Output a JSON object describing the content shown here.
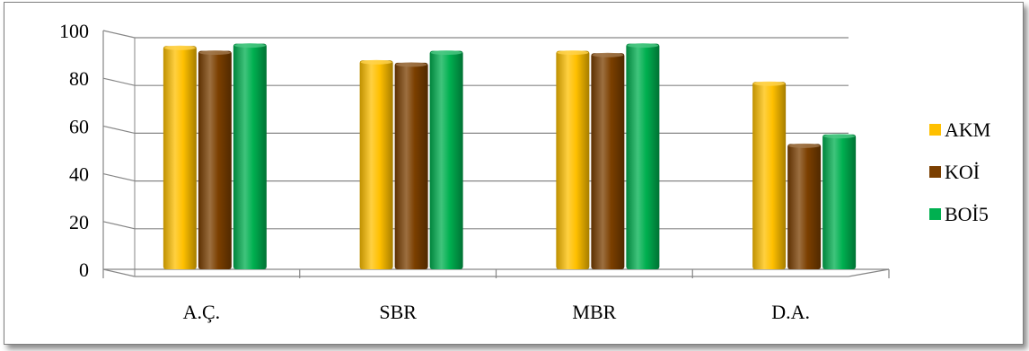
{
  "chart_data": {
    "type": "bar",
    "categories": [
      "A.Ç.",
      "SBR",
      "MBR",
      "D.A."
    ],
    "series": [
      {
        "name": "AKM",
        "values": [
          95,
          89,
          93,
          80
        ],
        "color": "#FFC000"
      },
      {
        "name": "KOİ",
        "values": [
          93,
          88,
          92,
          54
        ],
        "color": "#7B3F00"
      },
      {
        "name": "BOİ5",
        "values": [
          96,
          93,
          96,
          58
        ],
        "color": "#00B050"
      }
    ],
    "ylim": [
      0,
      100
    ],
    "yticks": [
      "0",
      "20",
      "40",
      "60",
      "80",
      "100"
    ],
    "grid": true,
    "legend": "right",
    "title": "",
    "xlabel": "",
    "ylabel": ""
  }
}
